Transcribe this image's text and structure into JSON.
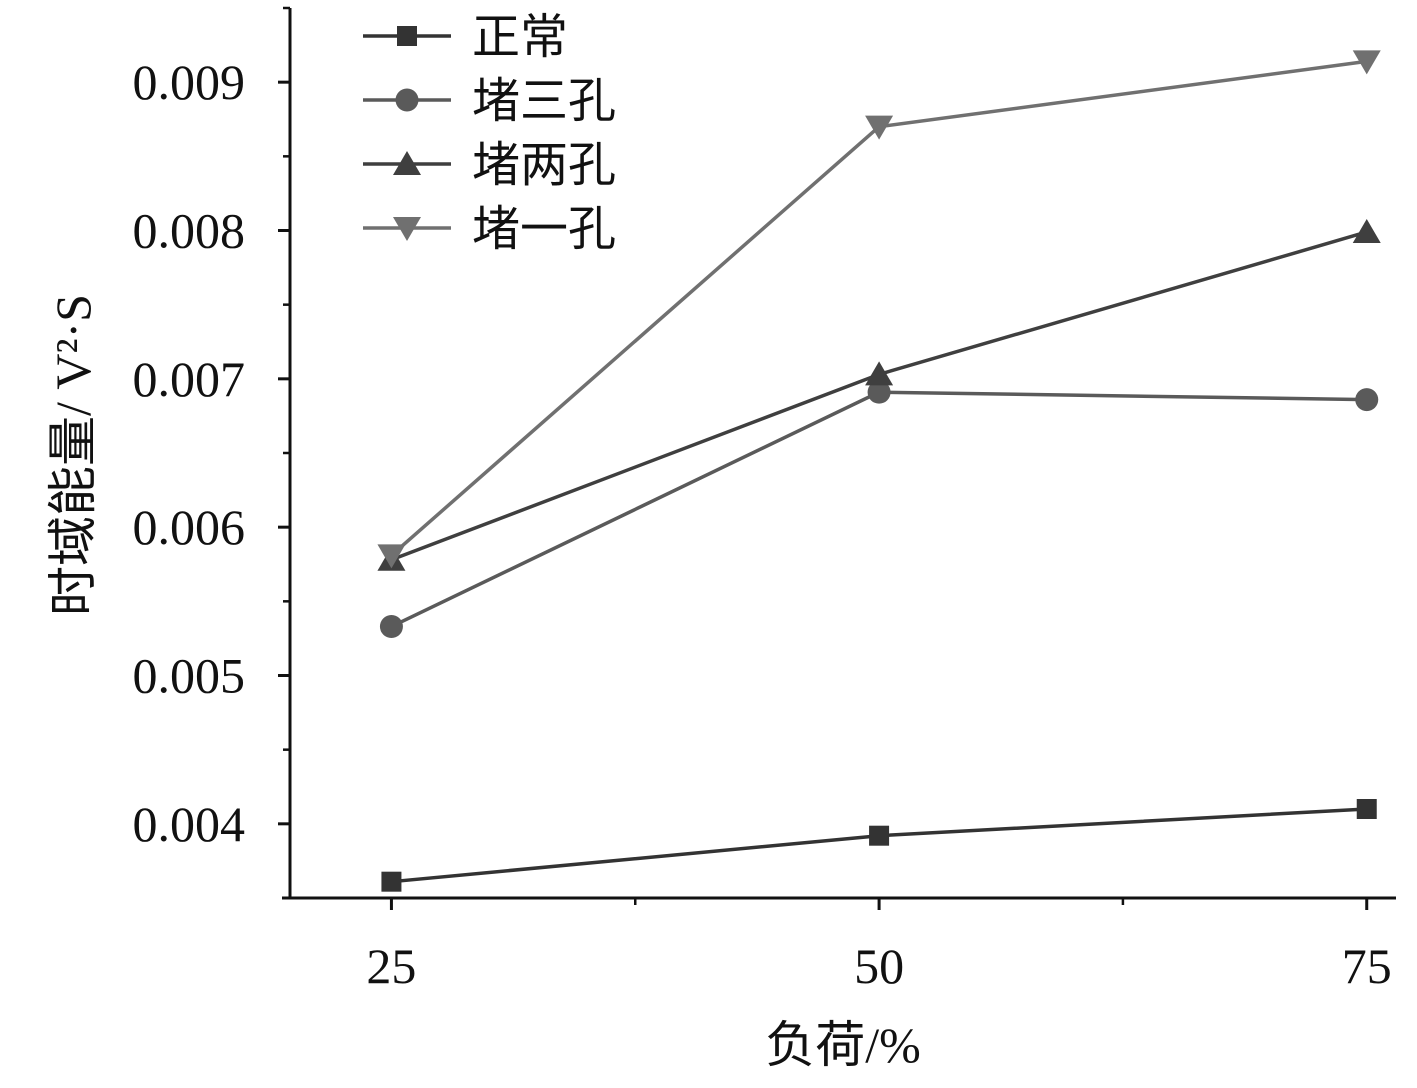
{
  "chart_data": {
    "type": "line",
    "xlabel": "负荷/%",
    "ylabel": "时域能量/ V²·S",
    "x": [
      25,
      50,
      75
    ],
    "xticks": [
      "25",
      "50",
      "75"
    ],
    "xlim": [
      19.8,
      76.5
    ],
    "ylim": [
      0.0035,
      0.0095
    ],
    "yticks": [
      "0.004",
      "0.005",
      "0.006",
      "0.007",
      "0.008",
      "0.009"
    ],
    "grid": false,
    "legend_position": "top-left",
    "series": [
      {
        "name": "正常",
        "marker": "square",
        "color": "#333333",
        "values": [
          0.00361,
          0.00392,
          0.0041
        ]
      },
      {
        "name": "堵三孔",
        "marker": "circle",
        "color": "#5a5a5a",
        "values": [
          0.00533,
          0.00691,
          0.00686
        ]
      },
      {
        "name": "堵两孔",
        "marker": "triangle-up",
        "color": "#3f3f3f",
        "values": [
          0.00578,
          0.00703,
          0.00799
        ]
      },
      {
        "name": "堵一孔",
        "marker": "triangle-down",
        "color": "#707070",
        "values": [
          0.00581,
          0.0087,
          0.00914
        ]
      }
    ]
  }
}
